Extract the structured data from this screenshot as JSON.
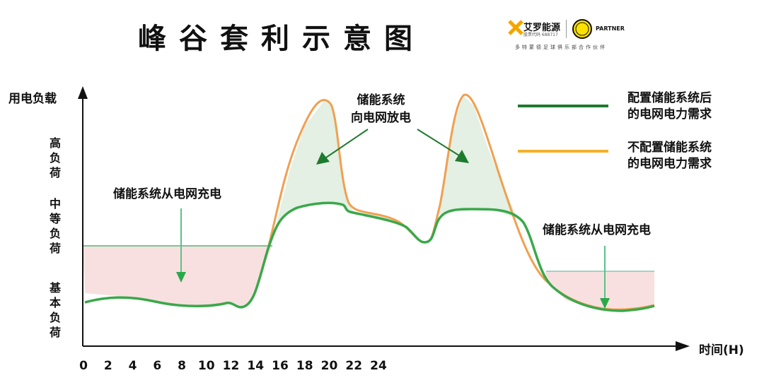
{
  "title": "峰谷套利示意图",
  "logo": {
    "brand_name": "艾罗能源",
    "brand_mark": "SOLAX",
    "stock_code": "股票代码 688717",
    "club_badge": "BVB 09",
    "partner": "PARTNER",
    "subtitle": "多特蒙德足球俱乐部合作伙伴"
  },
  "axes": {
    "y_label": "用电负载",
    "x_label": "时间(H)",
    "y_levels": [
      "高负荷",
      "中等负荷",
      "基本负荷"
    ],
    "x_ticks": [
      "0",
      "2",
      "4",
      "6",
      "8",
      "10",
      "12",
      "14",
      "16",
      "18",
      "20",
      "22",
      "24"
    ]
  },
  "annotations": {
    "discharge": [
      "储能系统",
      "向电网放电"
    ],
    "charge_left": "储能系统从电网充电",
    "charge_right": "储能系统从电网充电"
  },
  "legend": [
    {
      "label_lines": [
        "配置储能系统后",
        "的电网电力需求"
      ],
      "color": "#1e7a2e"
    },
    {
      "label_lines": [
        "不配置储能系统",
        "的电网电力需求"
      ],
      "color": "#f5b02a"
    }
  ],
  "colors": {
    "with_storage": "#3aa84a",
    "without_storage": "#f0a050",
    "discharge_fill": "#e3f0e3",
    "charge_fill": "#f8e0e0",
    "arrow": "#1e7a2e",
    "charge_arrow": "#5cc08a"
  }
}
